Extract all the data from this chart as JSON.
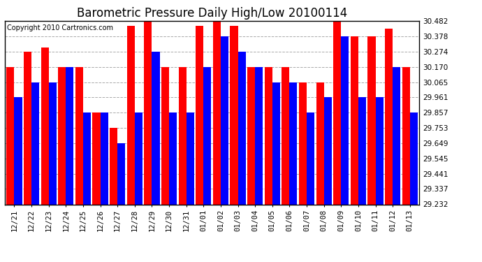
{
  "title": "Barometric Pressure Daily High/Low 20100114",
  "copyright": "Copyright 2010 Cartronics.com",
  "dates": [
    "12/21",
    "12/22",
    "12/23",
    "12/24",
    "12/25",
    "12/26",
    "12/27",
    "12/28",
    "12/29",
    "12/30",
    "12/31",
    "01/01",
    "01/02",
    "01/03",
    "01/04",
    "01/05",
    "01/06",
    "01/07",
    "01/08",
    "01/09",
    "01/10",
    "01/11",
    "01/12",
    "01/13"
  ],
  "highs": [
    30.17,
    30.274,
    30.3,
    30.17,
    30.17,
    29.857,
    29.753,
    30.45,
    30.482,
    30.17,
    30.17,
    30.45,
    30.482,
    30.45,
    30.17,
    30.17,
    30.17,
    30.065,
    30.065,
    30.482,
    30.378,
    30.378,
    30.43,
    30.17
  ],
  "lows": [
    29.961,
    30.065,
    30.065,
    30.17,
    29.857,
    29.857,
    29.649,
    29.857,
    30.274,
    29.857,
    29.857,
    30.17,
    30.378,
    30.274,
    30.17,
    30.065,
    30.065,
    29.857,
    29.961,
    30.378,
    29.961,
    29.961,
    30.17,
    29.857
  ],
  "ymin": 29.232,
  "ymax": 30.482,
  "yticks": [
    29.232,
    29.337,
    29.441,
    29.545,
    29.649,
    29.753,
    29.857,
    29.961,
    30.065,
    30.17,
    30.274,
    30.378,
    30.482
  ],
  "high_color": "#FF0000",
  "low_color": "#0000FF",
  "bg_color": "#FFFFFF",
  "plot_bg_color": "#FFFFFF",
  "grid_color": "#AAAAAA",
  "title_fontsize": 12,
  "copyright_fontsize": 7
}
